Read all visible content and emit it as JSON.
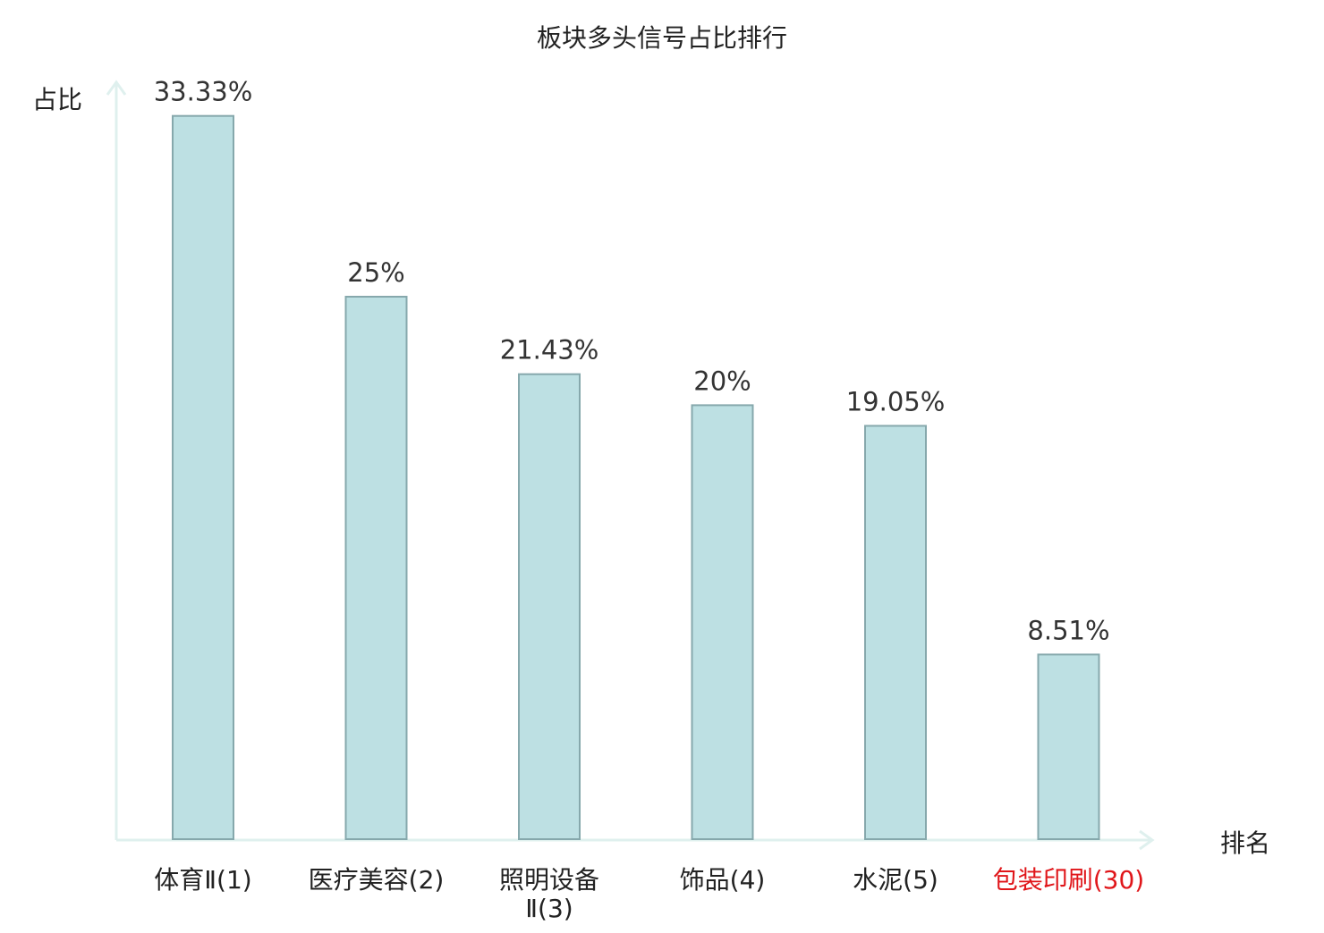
{
  "chart_data": {
    "type": "bar",
    "title": "板块多头信号占比排行",
    "ylabel": "占比",
    "xlabel": "排名",
    "ylim": [
      0,
      35
    ],
    "grid": false,
    "categories": [
      {
        "lines": [
          "体育Ⅱ(1)"
        ],
        "highlight": false
      },
      {
        "lines": [
          "医疗美容(2)"
        ],
        "highlight": false
      },
      {
        "lines": [
          "照明设备",
          "Ⅱ(3)"
        ],
        "highlight": false
      },
      {
        "lines": [
          "饰品(4)"
        ],
        "highlight": false
      },
      {
        "lines": [
          "水泥(5)"
        ],
        "highlight": false
      },
      {
        "lines": [
          "包装印刷(30)"
        ],
        "highlight": true
      }
    ],
    "values": [
      33.33,
      25,
      21.43,
      20,
      19.05,
      8.51
    ],
    "value_labels": [
      "33.33%",
      "25%",
      "21.43%",
      "20%",
      "19.05%",
      "8.51%"
    ],
    "colors": {
      "bar_fill": "#bde0e3",
      "bar_stroke": "#86a8ac",
      "axis": "#dff0ee",
      "text": "#222222",
      "value_text": "#333333",
      "highlight": "#e0161a"
    }
  }
}
